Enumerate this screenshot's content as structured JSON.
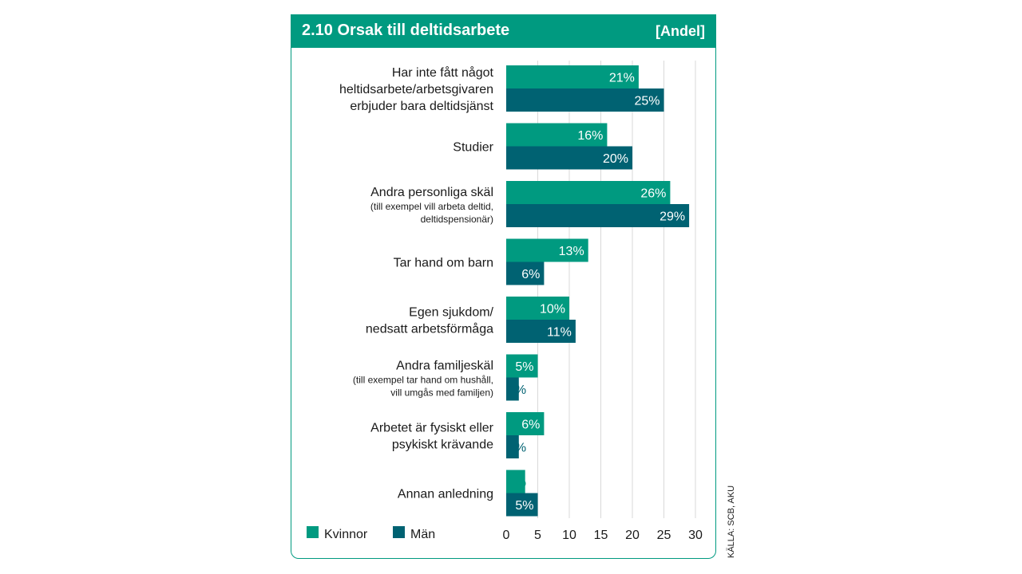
{
  "header": {
    "title": "2.10  Orsak till deltidsarbete",
    "unit": "[Andel]"
  },
  "source": "KÄLLA: SCB, AKU",
  "colors": {
    "header_bg": "#009a80",
    "kvinnor": "#009a80",
    "man": "#006272",
    "grid": "#d9d9d9"
  },
  "chart_data": {
    "type": "bar",
    "orientation": "horizontal",
    "categories": [
      {
        "main": [
          "Har inte fått något",
          "heltidsarbete/arbetsgivaren",
          "erbjuder bara deltidsjänst"
        ],
        "sub": []
      },
      {
        "main": [
          "Studier"
        ],
        "sub": []
      },
      {
        "main": [
          "Andra personliga skäl"
        ],
        "sub": [
          "(till exempel vill arbeta deltid,",
          "deltidspensionär)"
        ]
      },
      {
        "main": [
          "Tar hand om barn"
        ],
        "sub": []
      },
      {
        "main": [
          "Egen sjukdom/",
          "nedsatt arbetsförmåga"
        ],
        "sub": []
      },
      {
        "main": [
          "Andra familjeskäl"
        ],
        "sub": [
          "(till exempel tar hand om hushåll,",
          "vill umgås med familjen)"
        ]
      },
      {
        "main": [
          "Arbetet är fysiskt eller",
          "psykiskt krävande"
        ],
        "sub": []
      },
      {
        "main": [
          "Annan anledning"
        ],
        "sub": []
      }
    ],
    "series": [
      {
        "name": "Kvinnor",
        "color": "#009a80",
        "values": [
          21,
          16,
          26,
          13,
          10,
          5,
          6,
          3
        ]
      },
      {
        "name": "Män",
        "color": "#006272",
        "values": [
          25,
          20,
          29,
          6,
          11,
          2,
          2,
          5
        ]
      }
    ],
    "value_suffix": "%",
    "xlim": [
      0,
      30
    ],
    "xticks": [
      0,
      5,
      10,
      15,
      20,
      25,
      30
    ],
    "grid": true,
    "legend_position": "bottom-left"
  }
}
